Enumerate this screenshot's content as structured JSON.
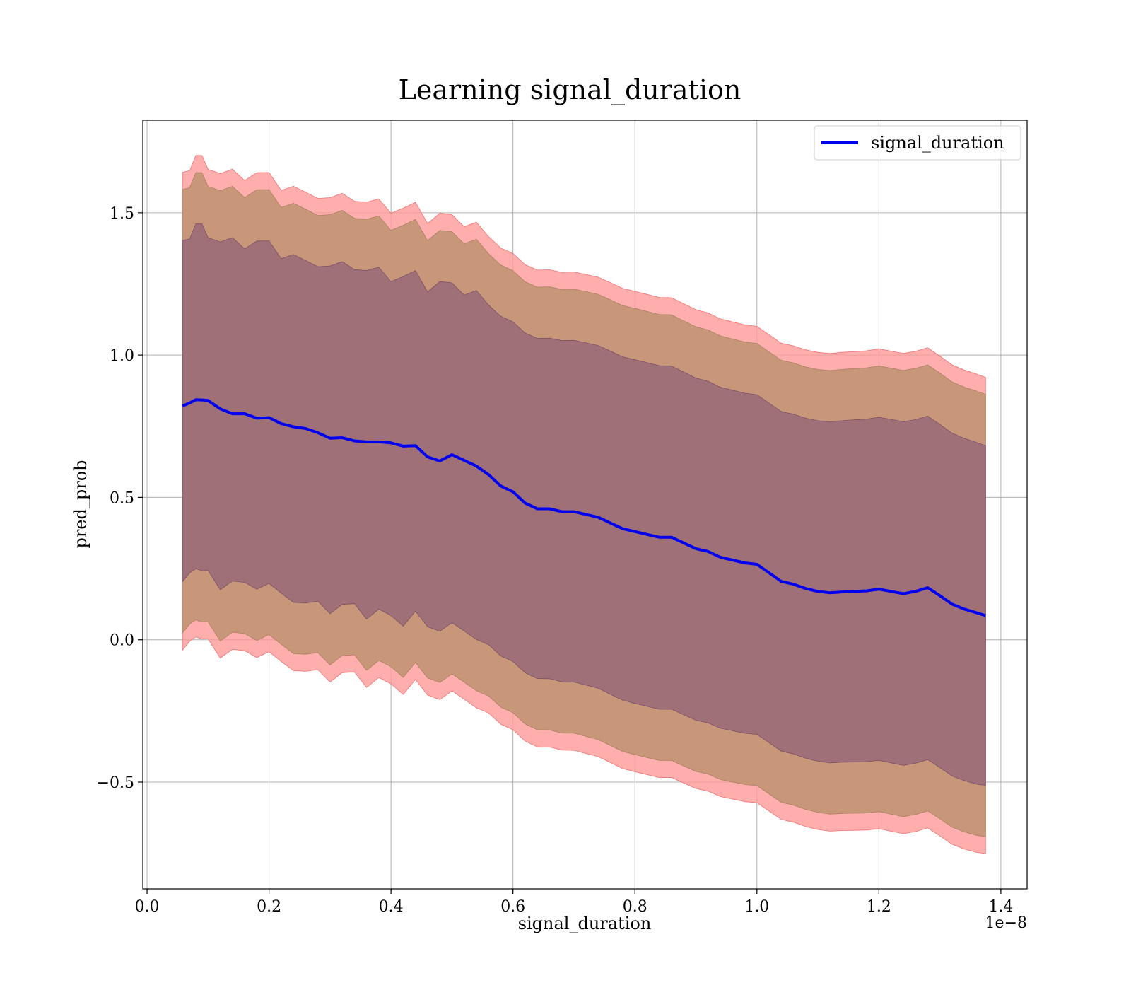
{
  "chart_data": {
    "type": "line",
    "title": "Learning signal_duration",
    "xlabel": "signal_duration",
    "ylabel": "pred_prob",
    "x_offset_label": "1e−8",
    "x_scale_note": "tick values shown ×1e−8",
    "xlim": [
      -0.007,
      1.443
    ],
    "ylim": [
      -0.875,
      1.825
    ],
    "x_ticks": [
      "0.0",
      "0.2",
      "0.4",
      "0.6",
      "0.8",
      "1.0",
      "1.2",
      "1.4"
    ],
    "y_ticks": [
      "−0.5",
      "0.0",
      "0.5",
      "1.0",
      "1.5"
    ],
    "grid": true,
    "legend_position": "top-right",
    "legend": [
      "signal_duration"
    ],
    "band_colors": {
      "outer": "#ff9a9a",
      "middle": "#c8977a",
      "inner": "#a07078",
      "line": "#0000ee"
    },
    "series": [
      {
        "name": "signal_duration",
        "x": [
          0.058,
          0.07,
          0.08,
          0.09,
          0.1,
          0.12,
          0.14,
          0.16,
          0.18,
          0.2,
          0.22,
          0.24,
          0.26,
          0.28,
          0.3,
          0.32,
          0.34,
          0.36,
          0.38,
          0.4,
          0.42,
          0.44,
          0.46,
          0.48,
          0.5,
          0.52,
          0.54,
          0.56,
          0.58,
          0.6,
          0.62,
          0.64,
          0.66,
          0.68,
          0.7,
          0.72,
          0.74,
          0.76,
          0.78,
          0.8,
          0.82,
          0.84,
          0.86,
          0.88,
          0.9,
          0.92,
          0.94,
          0.96,
          0.98,
          1.0,
          1.02,
          1.04,
          1.06,
          1.08,
          1.1,
          1.12,
          1.14,
          1.16,
          1.18,
          1.2,
          1.22,
          1.24,
          1.26,
          1.28,
          1.3,
          1.32,
          1.34,
          1.36,
          1.375
        ],
        "y": [
          0.81,
          0.83,
          0.84,
          0.85,
          0.83,
          0.8,
          0.79,
          0.8,
          0.79,
          0.79,
          0.76,
          0.74,
          0.73,
          0.72,
          0.71,
          0.72,
          0.71,
          0.7,
          0.69,
          0.68,
          0.67,
          0.68,
          0.65,
          0.64,
          0.65,
          0.63,
          0.61,
          0.58,
          0.54,
          0.52,
          0.48,
          0.46,
          0.46,
          0.45,
          0.45,
          0.44,
          0.43,
          0.41,
          0.39,
          0.38,
          0.37,
          0.36,
          0.36,
          0.34,
          0.32,
          0.31,
          0.29,
          0.28,
          0.27,
          0.265,
          0.235,
          0.205,
          0.195,
          0.18,
          0.17,
          0.165,
          0.168,
          0.17,
          0.172,
          0.178,
          0.17,
          0.162,
          0.17,
          0.183,
          0.155,
          0.125,
          0.108,
          0.095,
          0.085
        ],
        "inner_halfwidth": 0.6,
        "middle_halfwidth": 0.78,
        "outer_halfwidth": 0.84
      }
    ]
  }
}
